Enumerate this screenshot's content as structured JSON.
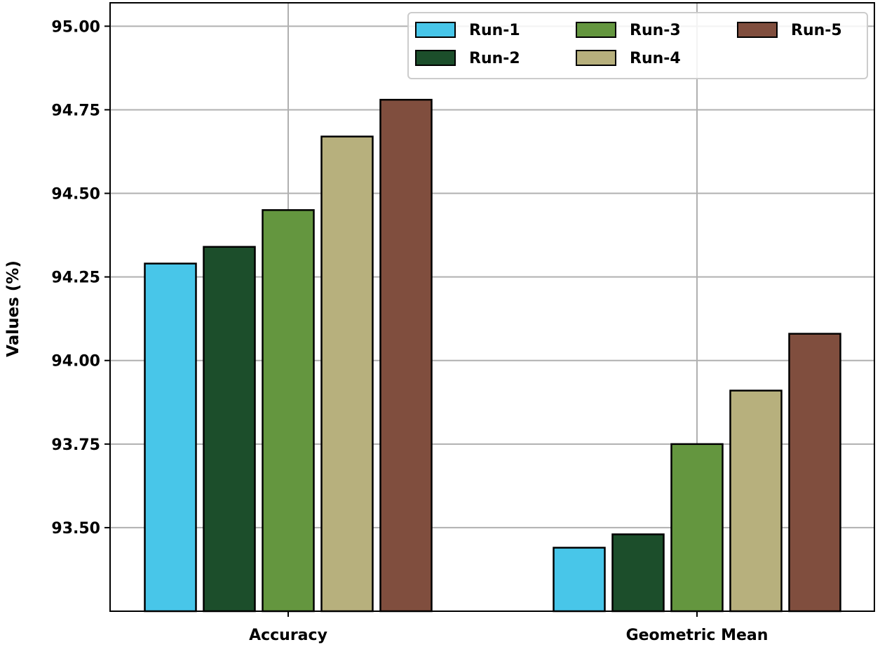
{
  "chart_data": {
    "type": "bar",
    "title": "",
    "xlabel": "",
    "ylabel": "Values (%)",
    "categories": [
      "Accuracy",
      "Geometric Mean"
    ],
    "series": [
      {
        "name": "Run-1",
        "color": "#48c6e9",
        "values": [
          94.29,
          93.44
        ]
      },
      {
        "name": "Run-2",
        "color": "#1c4e2b",
        "values": [
          94.34,
          93.48
        ]
      },
      {
        "name": "Run-3",
        "color": "#64963f",
        "values": [
          94.45,
          93.75
        ]
      },
      {
        "name": "Run-4",
        "color": "#b7b07d",
        "values": [
          94.67,
          93.91
        ]
      },
      {
        "name": "Run-5",
        "color": "#804e3e",
        "values": [
          94.78,
          94.08
        ]
      }
    ],
    "ylim": [
      93.25,
      95.07
    ],
    "yticks": [
      "93.50",
      "93.75",
      "94.00",
      "94.25",
      "94.50",
      "94.75",
      "95.00"
    ],
    "grid": true,
    "legend_position": "top-right"
  }
}
